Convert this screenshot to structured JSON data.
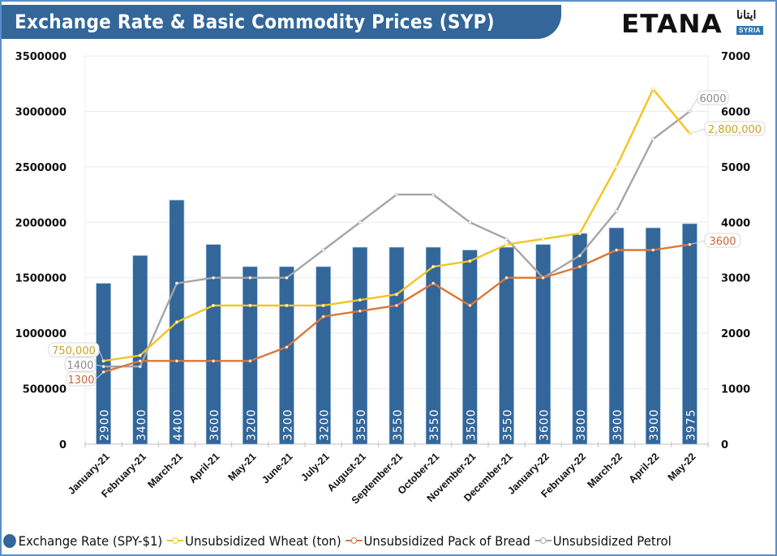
{
  "header": {
    "title": "Exchange Rate & Basic Commodity Prices (SYP)",
    "logo_text": "ETANA",
    "logo_arabic": "ايتانا",
    "logo_badge": "SYRIA"
  },
  "colors": {
    "title_band": "#336699",
    "bars": "#336699",
    "wheat": "#f2c521",
    "bread": "#d9773a",
    "petrol": "#a5a5a5",
    "frame": "#5b8fc9"
  },
  "chart_data": {
    "type": "bar+line",
    "title": "Exchange Rate & Basic Commodity Prices (SYP)",
    "categories": [
      "January-21",
      "February-21",
      "March-21",
      "April-21",
      "May-21",
      "June-21",
      "July-21",
      "August-21",
      "September-21",
      "October-21",
      "November-21",
      "December-21",
      "January-22",
      "February-22",
      "March-22",
      "April-22",
      "May-22"
    ],
    "left_axis": {
      "ylim": [
        0,
        3500000
      ],
      "ticks": [
        "0",
        "500000",
        "1000000",
        "1500000",
        "2000000",
        "2500000",
        "3000000",
        "3500000"
      ],
      "tick_values": [
        0,
        500000,
        1000000,
        1500000,
        2000000,
        2500000,
        3000000,
        3500000
      ]
    },
    "right_axis": {
      "ylim": [
        0,
        7000
      ],
      "ticks": [
        "0",
        "1000",
        "2000",
        "3000",
        "4000",
        "5000",
        "6000",
        "7000"
      ],
      "tick_values": [
        0,
        1000,
        2000,
        3000,
        4000,
        5000,
        6000,
        7000
      ]
    },
    "grid": true,
    "legend_position": "bottom",
    "series": [
      {
        "name": "Exchange Rate (SPY-$1)",
        "type": "bar",
        "axis": "left",
        "plot_scale": 500,
        "values": [
          2900,
          3400,
          4400,
          3600,
          3200,
          3200,
          3200,
          3550,
          3550,
          3550,
          3500,
          3550,
          3600,
          3800,
          3900,
          3900,
          3975
        ],
        "labels": [
          "2900",
          "3400",
          "4400",
          "3600",
          "3200",
          "3200",
          "3200",
          "3550",
          "3550",
          "3550",
          "3500",
          "3550",
          "3600",
          "3800",
          "3900",
          "3900",
          "3975"
        ]
      },
      {
        "name": "Unsubsidized Wheat (ton)",
        "type": "line",
        "axis": "left",
        "values": [
          750000,
          800000,
          1100000,
          1250000,
          1250000,
          1250000,
          1250000,
          1300000,
          1350000,
          1600000,
          1650000,
          1800000,
          1850000,
          1900000,
          2500000,
          3200000,
          2800000
        ]
      },
      {
        "name": "Unsubsidized Pack of Bread",
        "type": "line",
        "axis": "right",
        "values": [
          1300,
          1500,
          1500,
          1500,
          1500,
          1750,
          2300,
          2400,
          2500,
          2900,
          2500,
          3000,
          3000,
          3200,
          3500,
          3500,
          3600
        ]
      },
      {
        "name": "Unsubsidized Petrol",
        "type": "line",
        "axis": "right",
        "values": [
          1400,
          1400,
          2900,
          3000,
          3000,
          3000,
          3500,
          4000,
          4500,
          4500,
          4000,
          3700,
          3000,
          3400,
          4200,
          5500,
          6000
        ]
      }
    ],
    "annotations": [
      {
        "series": "Unsubsidized Wheat (ton)",
        "point": "January-21",
        "text": "750,000"
      },
      {
        "series": "Unsubsidized Petrol",
        "point": "January-21",
        "text": "1400"
      },
      {
        "series": "Unsubsidized Pack of Bread",
        "point": "January-21",
        "text": "1300"
      },
      {
        "series": "Unsubsidized Petrol",
        "point": "May-22",
        "text": "6000"
      },
      {
        "series": "Unsubsidized Wheat (ton)",
        "point": "May-22",
        "text": "2,800,000"
      },
      {
        "series": "Unsubsidized Pack of Bread",
        "point": "May-22",
        "text": "3600"
      }
    ]
  },
  "legend": {
    "items": [
      {
        "label": "Exchange Rate (SPY-$1)",
        "kind": "dot"
      },
      {
        "label": "Unsubsidized Wheat (ton)",
        "kind": "line"
      },
      {
        "label": "Unsubsidized Pack of Bread",
        "kind": "line"
      },
      {
        "label": "Unsubsidized Petrol",
        "kind": "line"
      }
    ]
  }
}
